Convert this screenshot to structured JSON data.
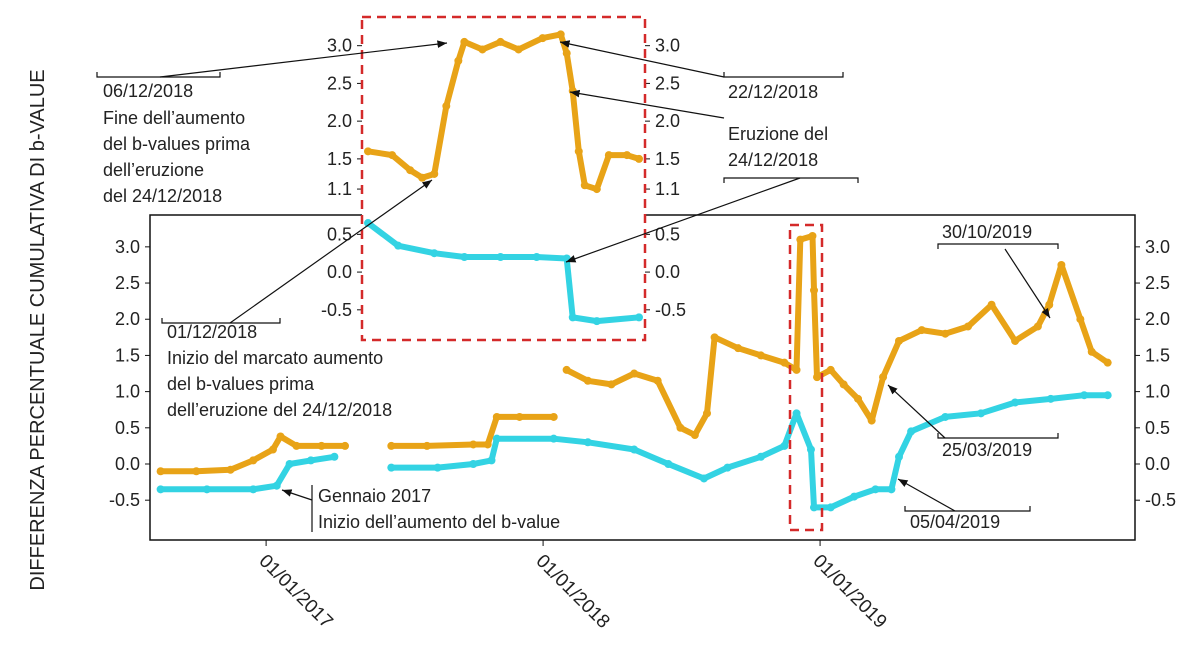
{
  "chart_data": [
    {
      "type": "line",
      "ylabel": "DIFFERENZA PERCENTUALE CUMULATIVA DI b-VALUE",
      "xlim": [
        "2016-08-01",
        "2020-02-20"
      ],
      "xticks": [
        {
          "value": "2017-01-01",
          "label": "01/01/2017"
        },
        {
          "value": "2018-01-01",
          "label": "01/01/2018"
        },
        {
          "value": "2019-01-01",
          "label": "01/01/2019"
        }
      ],
      "ylim": [
        -1.05,
        3.44
      ],
      "yticks": [
        -0.5,
        {
          "value": 0,
          "label": "0.0"
        },
        0.5,
        {
          "value": 1,
          "label": "1.0"
        },
        1.5,
        {
          "value": 2,
          "label": "2.0"
        },
        2.5,
        {
          "value": 3,
          "label": "3.0"
        }
      ],
      "series": [
        {
          "color": "#e8a317",
          "x": [
            "2016-08-15",
            "2016-10-01",
            "2016-11-15",
            "2016-12-15",
            "2017-01-10",
            "2017-01-20",
            "2017-02-10",
            "2017-03-15",
            "2017-04-15",
            "2017-05-10",
            "2017-06-15",
            "2017-08-01",
            "2017-10-01",
            "2017-10-20",
            "2017-11-01",
            "2017-12-01",
            "2018-01-15",
            "2018-01-25",
            "2018-02-01",
            "2018-03-01",
            "2018-04-01",
            "2018-05-01",
            "2018-06-01",
            "2018-07-01",
            "2018-07-20",
            "2018-08-05",
            "2018-08-15",
            "2018-09-15",
            "2018-10-15",
            "2018-11-15",
            "2018-12-01",
            "2018-12-06",
            "2018-12-22",
            "2018-12-24",
            "2018-12-28",
            "2019-01-15",
            "2019-02-01",
            "2019-02-20",
            "2019-03-10",
            "2019-03-25",
            "2019-04-15",
            "2019-05-15",
            "2019-06-15",
            "2019-07-15",
            "2019-08-15",
            "2019-09-15",
            "2019-10-15",
            "2019-10-30",
            "2019-11-15",
            "2019-12-10",
            "2019-12-25",
            "2020-01-15"
          ],
          "values": [
            -0.1,
            -0.1,
            -0.08,
            0.05,
            0.2,
            0.38,
            0.25,
            0.25,
            0.25,
            null,
            0.25,
            0.25,
            0.27,
            0.27,
            0.65,
            0.65,
            0.65,
            null,
            1.3,
            1.15,
            1.1,
            1.25,
            1.15,
            0.5,
            0.4,
            0.7,
            1.75,
            1.6,
            1.5,
            1.4,
            1.3,
            3.1,
            3.15,
            2.4,
            1.2,
            1.3,
            1.1,
            0.9,
            0.6,
            1.2,
            1.7,
            1.85,
            1.8,
            1.9,
            2.2,
            1.7,
            1.9,
            2.2,
            2.75,
            2.0,
            1.55,
            1.4
          ]
        },
        {
          "color": "#33d3e3",
          "x": [
            "2016-08-15",
            "2016-10-15",
            "2016-12-15",
            "2017-01-15",
            "2017-02-01",
            "2017-03-01",
            "2017-04-01",
            "2017-05-10",
            "2017-06-15",
            "2017-08-15",
            "2017-10-01",
            "2017-10-25",
            "2017-11-01",
            "2018-01-15",
            "2018-03-01",
            "2018-05-01",
            "2018-06-15",
            "2018-08-01",
            "2018-09-01",
            "2018-10-15",
            "2018-11-15",
            "2018-12-01",
            "2018-12-20",
            "2018-12-24",
            "2019-01-15",
            "2019-02-15",
            "2019-03-15",
            "2019-04-05",
            "2019-04-15",
            "2019-05-01",
            "2019-06-15",
            "2019-08-01",
            "2019-09-15",
            "2019-11-01",
            "2019-12-15",
            "2020-01-15"
          ],
          "values": [
            -0.35,
            -0.35,
            -0.35,
            -0.3,
            0.0,
            0.05,
            0.1,
            null,
            -0.05,
            -0.05,
            0.0,
            0.05,
            0.35,
            0.35,
            0.3,
            0.2,
            0.0,
            -0.2,
            -0.05,
            0.1,
            0.25,
            0.7,
            0.2,
            -0.6,
            -0.6,
            -0.45,
            -0.35,
            -0.35,
            0.1,
            0.45,
            0.65,
            0.7,
            0.85,
            0.9,
            0.95,
            0.95
          ]
        }
      ],
      "annotations": [
        {
          "lines": [
            "06/12/2018",
            "Fine dell’aumento",
            "del b-values prima",
            "dell’eruzione",
            "del 24/12/2018"
          ]
        },
        {
          "lines": [
            "22/12/2018"
          ]
        },
        {
          "lines": [
            "Eruzione del",
            "24/12/2018"
          ]
        },
        {
          "lines": [
            "01/12/2018",
            "Inizio del marcato aumento",
            "del b-values prima",
            "dell’eruzione del 24/12/2018"
          ]
        },
        {
          "lines": [
            "30/10/2019"
          ]
        },
        {
          "lines": [
            "25/03/2019"
          ]
        },
        {
          "lines": [
            "05/04/2019"
          ]
        },
        {
          "lines": [
            "Gennaio 2017",
            "Inizio dell’aumento del b-value"
          ]
        }
      ]
    },
    {
      "type": "line",
      "xlim": [
        "2018-11-19",
        "2019-01-05"
      ],
      "ylim": [
        -0.9,
        3.38
      ],
      "yticks": [
        -0.5,
        {
          "value": 0,
          "label": "0.0"
        },
        0.5,
        1.1,
        1.5,
        {
          "value": 2,
          "label": "2.0"
        },
        2.5,
        {
          "value": 3,
          "label": "3.0"
        }
      ],
      "series": [
        {
          "color": "#e8a317",
          "x": [
            "2018-11-20",
            "2018-11-24",
            "2018-11-27",
            "2018-11-29",
            "2018-12-01",
            "2018-12-03",
            "2018-12-05",
            "2018-12-06",
            "2018-12-09",
            "2018-12-12",
            "2018-12-15",
            "2018-12-19",
            "2018-12-22",
            "2018-12-23",
            "2018-12-24",
            "2018-12-25",
            "2018-12-26",
            "2018-12-28",
            "2018-12-30",
            "2019-01-02",
            "2019-01-04"
          ],
          "values": [
            1.6,
            1.55,
            1.35,
            1.25,
            1.3,
            2.2,
            2.8,
            3.05,
            2.95,
            3.05,
            2.95,
            3.1,
            3.15,
            2.9,
            2.4,
            1.6,
            1.15,
            1.1,
            1.55,
            1.55,
            1.5
          ]
        },
        {
          "color": "#33d3e3",
          "x": [
            "2018-11-20",
            "2018-11-25",
            "2018-12-01",
            "2018-12-06",
            "2018-12-12",
            "2018-12-18",
            "2018-12-23",
            "2018-12-24",
            "2018-12-28",
            "2019-01-04"
          ],
          "values": [
            0.65,
            0.35,
            0.25,
            0.2,
            0.2,
            0.2,
            0.18,
            -0.6,
            -0.65,
            -0.6
          ]
        }
      ]
    }
  ]
}
